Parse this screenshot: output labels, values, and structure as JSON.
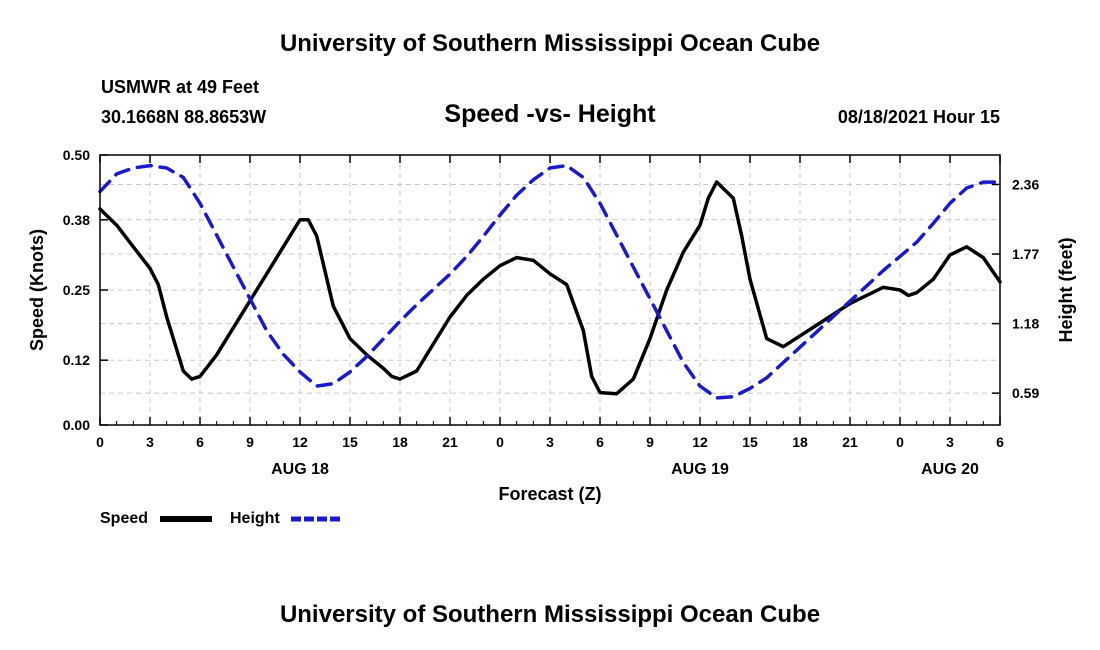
{
  "page": {
    "title_top": "University of Southern Mississippi Ocean Cube",
    "title_bottom": "University of Southern Mississippi Ocean Cube",
    "station": "USMWR at 49 Feet",
    "coords": "30.1668N  88.8653W",
    "datetime": "08/18/2021 Hour 15"
  },
  "legend": {
    "speed_label": "Speed",
    "height_label": "Height",
    "speed_color": "#000000",
    "height_color": "#1a1acc"
  },
  "chart_data": {
    "type": "line",
    "title": "Speed -vs- Height",
    "xlabel": "Forecast (Z)",
    "ylabel": "Speed (Knots)",
    "y2label": "Height (feet)",
    "x_range": [
      0,
      54
    ],
    "ylim": [
      0,
      0.5
    ],
    "y2lim": [
      0.32,
      2.61
    ],
    "grid": true,
    "x_ticks": [
      0,
      3,
      6,
      9,
      12,
      15,
      18,
      21,
      24,
      27,
      30,
      33,
      36,
      39,
      42,
      45,
      48,
      51,
      54
    ],
    "x_tick_labels": [
      "0",
      "3",
      "6",
      "9",
      "12",
      "15",
      "18",
      "21",
      "0",
      "3",
      "6",
      "9",
      "12",
      "15",
      "18",
      "21",
      "0",
      "3",
      "6"
    ],
    "y_ticks": [
      0.0,
      0.12,
      0.25,
      0.38,
      0.5
    ],
    "y_tick_labels": [
      "0.00",
      "0.12",
      "0.25",
      "0.38",
      "0.50"
    ],
    "y2_ticks": [
      0.59,
      1.18,
      1.77,
      2.36
    ],
    "y2_tick_labels": [
      "0.59",
      "1.18",
      "1.77",
      "2.36"
    ],
    "date_labels": [
      {
        "x": 12,
        "label": "AUG 18"
      },
      {
        "x": 36,
        "label": "AUG 19"
      },
      {
        "x": 51,
        "label": "AUG 20"
      }
    ],
    "series": [
      {
        "name": "Speed",
        "axis": "left",
        "x": [
          0,
          1,
          2,
          3,
          3.5,
          4,
          4.5,
          5,
          5.5,
          6,
          7,
          8,
          9,
          10,
          11,
          12,
          12.5,
          13,
          14,
          15,
          16,
          17,
          17.5,
          18,
          19,
          20,
          21,
          22,
          23,
          24,
          25,
          26,
          27,
          28,
          29,
          29.5,
          30,
          31,
          32,
          33,
          34,
          35,
          36,
          36.5,
          37,
          38,
          38.5,
          39,
          40,
          41,
          42,
          43,
          44,
          45,
          46,
          47,
          48,
          48.5,
          49,
          50,
          51,
          52,
          53,
          54
        ],
        "values": [
          0.4,
          0.37,
          0.33,
          0.29,
          0.26,
          0.2,
          0.15,
          0.1,
          0.085,
          0.09,
          0.13,
          0.18,
          0.23,
          0.28,
          0.33,
          0.38,
          0.38,
          0.35,
          0.22,
          0.16,
          0.13,
          0.105,
          0.09,
          0.085,
          0.1,
          0.15,
          0.2,
          0.24,
          0.27,
          0.295,
          0.31,
          0.305,
          0.28,
          0.26,
          0.175,
          0.09,
          0.06,
          0.058,
          0.085,
          0.16,
          0.25,
          0.32,
          0.37,
          0.42,
          0.45,
          0.42,
          0.35,
          0.27,
          0.16,
          0.145,
          0.165,
          0.185,
          0.205,
          0.225,
          0.24,
          0.255,
          0.25,
          0.24,
          0.245,
          0.27,
          0.315,
          0.33,
          0.31,
          0.265
        ]
      },
      {
        "name": "Height",
        "axis": "right",
        "x": [
          0,
          1,
          2,
          3,
          4,
          5,
          6,
          7,
          8,
          9,
          10,
          11,
          12,
          13,
          14,
          15,
          16,
          17,
          18,
          19,
          20,
          21,
          22,
          23,
          24,
          25,
          26,
          27,
          28,
          29,
          30,
          31,
          32,
          33,
          34,
          35,
          36,
          37,
          38,
          39,
          40,
          41,
          42,
          43,
          44,
          45,
          46,
          47,
          48,
          49,
          50,
          51,
          52,
          53,
          54
        ],
        "values": [
          2.3,
          2.45,
          2.5,
          2.52,
          2.5,
          2.42,
          2.2,
          1.93,
          1.66,
          1.39,
          1.12,
          0.92,
          0.77,
          0.65,
          0.67,
          0.77,
          0.9,
          1.05,
          1.2,
          1.34,
          1.47,
          1.6,
          1.75,
          1.92,
          2.1,
          2.27,
          2.4,
          2.5,
          2.52,
          2.42,
          2.2,
          1.93,
          1.66,
          1.39,
          1.12,
          0.85,
          0.65,
          0.55,
          0.56,
          0.63,
          0.72,
          0.85,
          0.98,
          1.11,
          1.24,
          1.37,
          1.5,
          1.63,
          1.75,
          1.87,
          2.03,
          2.2,
          2.33,
          2.38,
          2.38
        ]
      }
    ]
  }
}
